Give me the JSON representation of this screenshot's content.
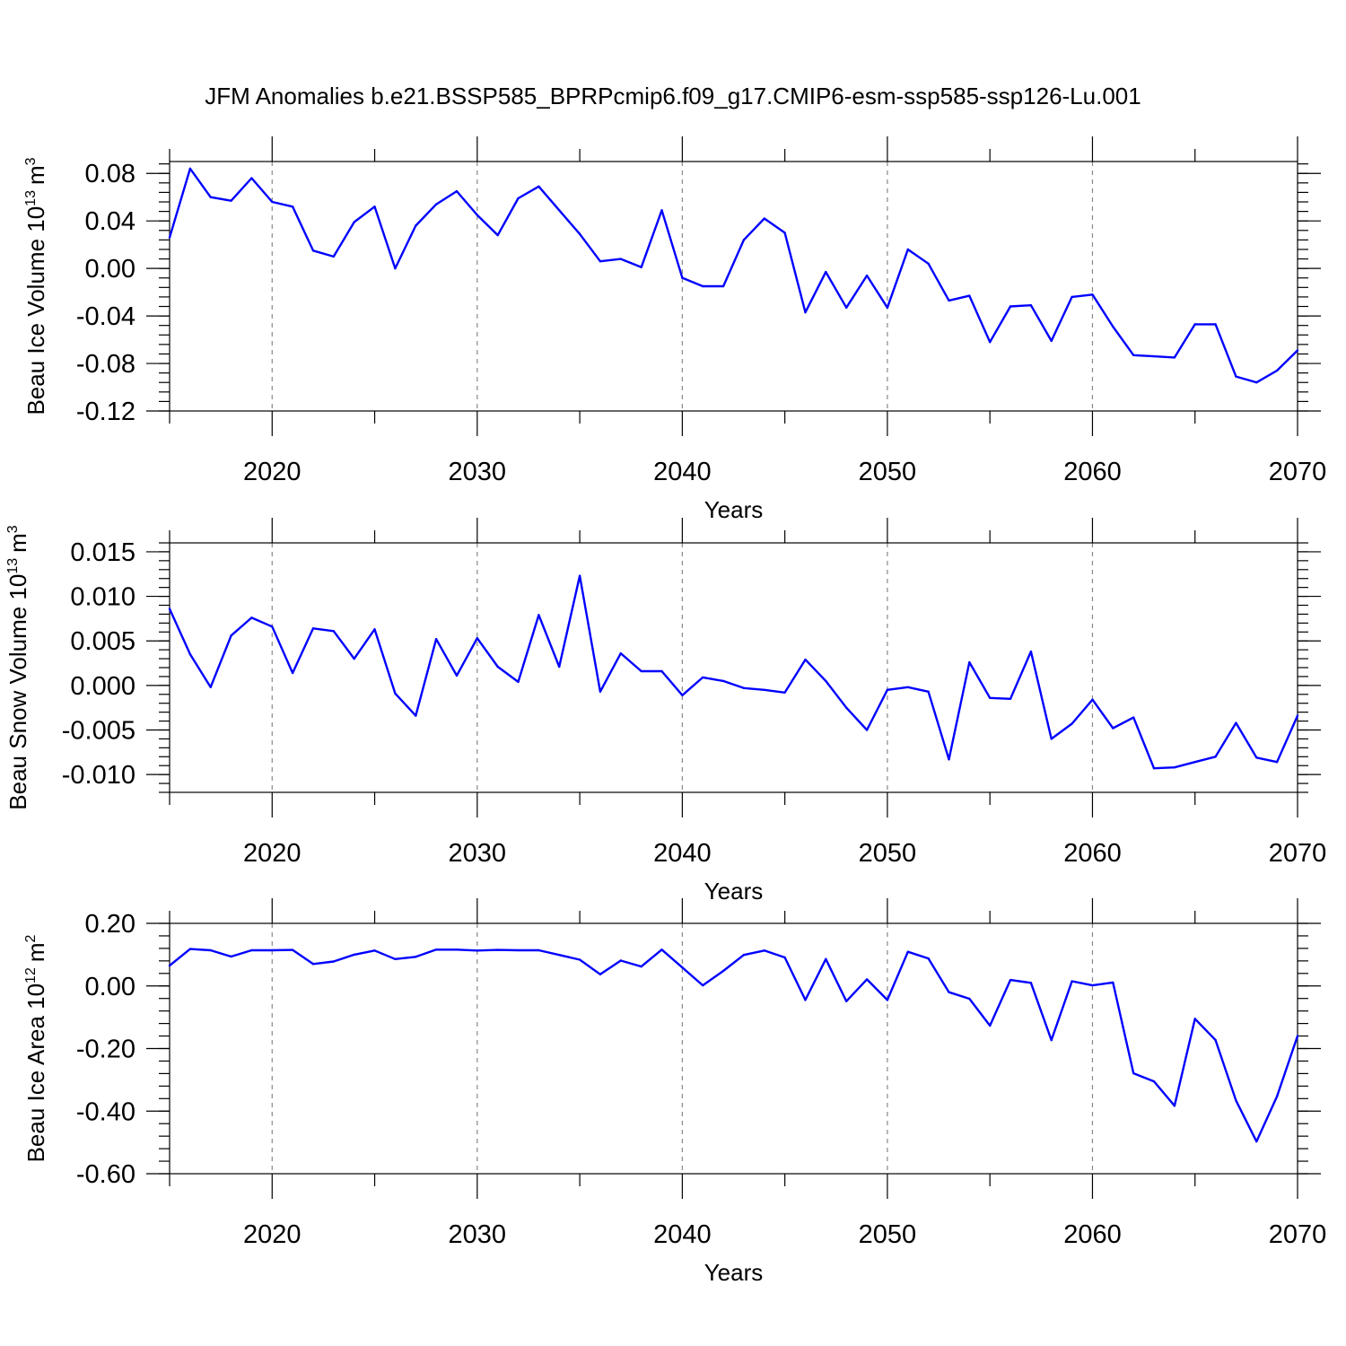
{
  "title": "JFM Anomalies b.e21.BSSP585_BPRPcmip6.f09_g17.CMIP6-esm-ssp585-ssp126-Lu.001",
  "colors": {
    "series": "#0000ff",
    "grid": "#888888",
    "axes": "#000000"
  },
  "chart_data": [
    {
      "type": "line",
      "name": "ice-volume",
      "ylabel": "Beau Ice Volume 10",
      "ylabel_exp": "13",
      "ylabel_unit": "m",
      "ylabel_unit_exp": "3",
      "xlabel": "Years",
      "xlim": [
        2015,
        2070
      ],
      "ylim": [
        -0.12,
        0.09
      ],
      "xticks": [
        2020,
        2030,
        2040,
        2050,
        2060,
        2070
      ],
      "xtick_labels": [
        "2020",
        "2030",
        "2040",
        "2050",
        "2060",
        "2070"
      ],
      "yticks": [
        -0.12,
        -0.08,
        -0.04,
        0.0,
        0.04,
        0.08
      ],
      "ytick_labels": [
        "-0.12",
        "-0.08",
        "-0.04",
        "0.00",
        "0.04",
        "0.08"
      ],
      "yminor_step": 0.008,
      "x": [
        2015,
        2016,
        2017,
        2018,
        2019,
        2020,
        2021,
        2022,
        2023,
        2024,
        2025,
        2026,
        2027,
        2028,
        2029,
        2030,
        2031,
        2032,
        2033,
        2034,
        2035,
        2036,
        2037,
        2038,
        2039,
        2040,
        2041,
        2042,
        2043,
        2044,
        2045,
        2046,
        2047,
        2048,
        2049,
        2050,
        2051,
        2052,
        2053,
        2054,
        2055,
        2056,
        2057,
        2058,
        2059,
        2060,
        2061,
        2062,
        2063,
        2064,
        2065,
        2066,
        2067,
        2068,
        2069,
        2070
      ],
      "values": [
        0.026,
        0.084,
        0.06,
        0.057,
        0.076,
        0.056,
        0.052,
        0.015,
        0.01,
        0.039,
        0.052,
        0.0,
        0.036,
        0.054,
        0.065,
        0.045,
        0.028,
        0.059,
        0.069,
        0.049,
        0.029,
        0.006,
        0.008,
        0.001,
        0.049,
        -0.008,
        -0.015,
        -0.015,
        0.024,
        0.042,
        0.03,
        -0.037,
        -0.003,
        -0.033,
        -0.006,
        -0.033,
        0.016,
        0.004,
        -0.027,
        -0.023,
        -0.062,
        -0.032,
        -0.031,
        -0.061,
        -0.024,
        -0.022,
        -0.049,
        -0.073,
        -0.074,
        -0.075,
        -0.047,
        -0.047,
        -0.091,
        -0.096,
        -0.086,
        -0.069
      ]
    },
    {
      "type": "line",
      "name": "snow-volume",
      "ylabel": "Beau Snow Volume 10",
      "ylabel_exp": "13",
      "ylabel_unit": "m",
      "ylabel_unit_exp": "3",
      "xlabel": "Years",
      "xlim": [
        2015,
        2070
      ],
      "ylim": [
        -0.012,
        0.016
      ],
      "xticks": [
        2020,
        2030,
        2040,
        2050,
        2060,
        2070
      ],
      "xtick_labels": [
        "2020",
        "2030",
        "2040",
        "2050",
        "2060",
        "2070"
      ],
      "yticks": [
        -0.01,
        -0.005,
        0.0,
        0.005,
        0.01,
        0.015
      ],
      "ytick_labels": [
        "-0.010",
        "-0.005",
        "0.000",
        "0.005",
        "0.010",
        "0.015"
      ],
      "yminor_step": 0.001,
      "x": [
        2015,
        2016,
        2017,
        2018,
        2019,
        2020,
        2021,
        2022,
        2023,
        2024,
        2025,
        2026,
        2027,
        2028,
        2029,
        2030,
        2031,
        2032,
        2033,
        2034,
        2035,
        2036,
        2037,
        2038,
        2039,
        2040,
        2041,
        2042,
        2043,
        2044,
        2045,
        2046,
        2047,
        2048,
        2049,
        2050,
        2051,
        2052,
        2053,
        2054,
        2055,
        2056,
        2057,
        2058,
        2059,
        2060,
        2061,
        2062,
        2063,
        2064,
        2065,
        2066,
        2067,
        2068,
        2069,
        2070
      ],
      "values": [
        0.0086,
        0.0035,
        -0.0002,
        0.0056,
        0.0076,
        0.0066,
        0.0014,
        0.0064,
        0.0061,
        0.003,
        0.0063,
        -0.0009,
        -0.0034,
        0.0052,
        0.0011,
        0.0053,
        0.0021,
        0.0004,
        0.0079,
        0.0021,
        0.0123,
        -0.0007,
        0.0036,
        0.0016,
        0.0016,
        -0.0011,
        0.0009,
        0.0005,
        -0.0003,
        -0.0005,
        -0.0008,
        0.0029,
        0.0005,
        -0.0025,
        -0.005,
        -0.0005,
        -0.0002,
        -0.0007,
        -0.0083,
        0.0026,
        -0.0014,
        -0.0015,
        0.0038,
        -0.006,
        -0.0043,
        -0.0016,
        -0.0048,
        -0.0036,
        -0.0093,
        -0.0092,
        -0.0086,
        -0.008,
        -0.0042,
        -0.0081,
        -0.0086,
        -0.0034
      ]
    },
    {
      "type": "line",
      "name": "ice-area",
      "ylabel": "Beau Ice Area 10",
      "ylabel_exp": "12",
      "ylabel_unit": "m",
      "ylabel_unit_exp": "2",
      "xlabel": "Years",
      "xlim": [
        2015,
        2070
      ],
      "ylim": [
        -0.6,
        0.2
      ],
      "xticks": [
        2020,
        2030,
        2040,
        2050,
        2060,
        2070
      ],
      "xtick_labels": [
        "2020",
        "2030",
        "2040",
        "2050",
        "2060",
        "2070"
      ],
      "yticks": [
        -0.6,
        -0.4,
        -0.2,
        0.0,
        0.2
      ],
      "ytick_labels": [
        "-0.60",
        "-0.40",
        "-0.20",
        "0.00",
        "0.20"
      ],
      "yminor_step": 0.04,
      "x": [
        2015,
        2016,
        2017,
        2018,
        2019,
        2020,
        2021,
        2022,
        2023,
        2024,
        2025,
        2026,
        2027,
        2028,
        2029,
        2030,
        2031,
        2032,
        2033,
        2034,
        2035,
        2036,
        2037,
        2038,
        2039,
        2040,
        2041,
        2042,
        2043,
        2044,
        2045,
        2046,
        2047,
        2048,
        2049,
        2050,
        2051,
        2052,
        2053,
        2054,
        2055,
        2056,
        2057,
        2058,
        2059,
        2060,
        2061,
        2062,
        2063,
        2064,
        2065,
        2066,
        2067,
        2068,
        2069,
        2070
      ],
      "values": [
        0.065,
        0.118,
        0.114,
        0.094,
        0.114,
        0.114,
        0.115,
        0.07,
        0.078,
        0.1,
        0.113,
        0.086,
        0.093,
        0.116,
        0.116,
        0.113,
        0.115,
        0.114,
        0.114,
        0.099,
        0.084,
        0.037,
        0.081,
        0.062,
        0.116,
        0.059,
        0.002,
        0.048,
        0.099,
        0.113,
        0.091,
        -0.045,
        0.086,
        -0.049,
        0.021,
        -0.045,
        0.109,
        0.088,
        -0.02,
        -0.041,
        -0.127,
        0.019,
        0.01,
        -0.173,
        0.015,
        0.002,
        0.011,
        -0.279,
        -0.305,
        -0.383,
        -0.105,
        -0.173,
        -0.366,
        -0.497,
        -0.353,
        -0.16
      ]
    }
  ]
}
